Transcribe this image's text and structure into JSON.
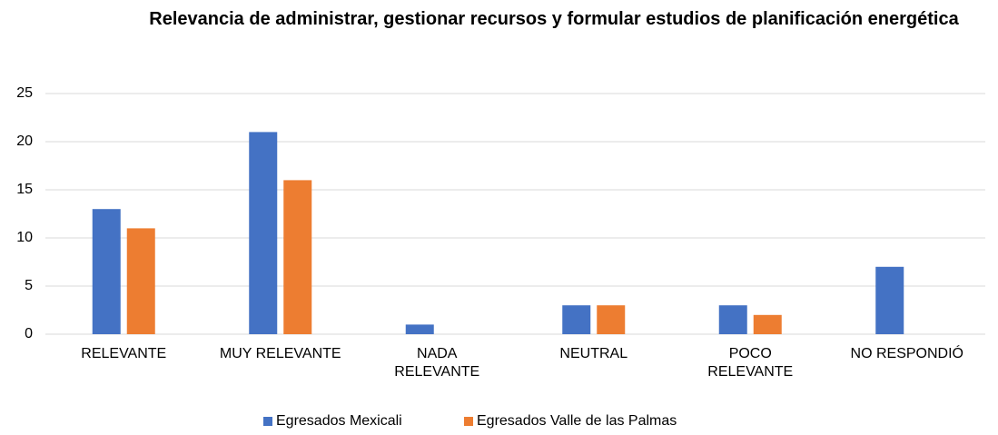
{
  "chart_data": {
    "type": "bar",
    "title": "Relevancia de administrar, gestionar recursos y formular estudios de planificación energética",
    "categories": [
      "RELEVANTE",
      "MUY RELEVANTE",
      "NADA RELEVANTE",
      "NEUTRAL",
      "POCO RELEVANTE",
      "NO RESPONDIÓ"
    ],
    "series": [
      {
        "name": "Egresados Mexicali",
        "color": "#4472c4",
        "values": [
          13,
          21,
          1,
          3,
          3,
          7
        ]
      },
      {
        "name": "Egresados Valle de las Palmas",
        "color": "#ed7d31",
        "values": [
          11,
          16,
          0,
          3,
          2,
          0
        ]
      }
    ],
    "ylim": [
      0,
      25
    ],
    "yticks": [
      0,
      5,
      10,
      15,
      20,
      25
    ],
    "grid": true,
    "legend": "bottom"
  }
}
